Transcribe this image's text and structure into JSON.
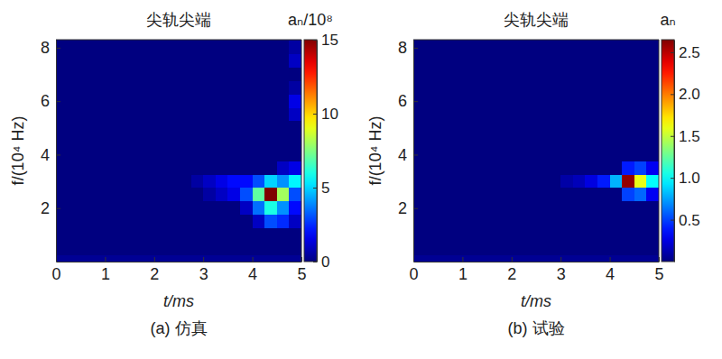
{
  "chart_data": [
    {
      "type": "heatmap",
      "title": "尖轨尖端",
      "subtitle": "(a) 仿真",
      "x_label": "t/ms",
      "y_label": "f/(10⁴ Hz)",
      "xlim": [
        0,
        5
      ],
      "xticks": [
        0,
        1,
        2,
        3,
        4,
        5
      ],
      "ylim": [
        0,
        8.3
      ],
      "yticks": [
        2,
        4,
        6,
        8
      ],
      "x": [
        0.125,
        0.375,
        0.625,
        0.875,
        1.125,
        1.375,
        1.625,
        1.875,
        2.125,
        2.375,
        2.625,
        2.875,
        3.125,
        3.375,
        3.625,
        3.875,
        4.125,
        4.375,
        4.625,
        4.875
      ],
      "y": [
        0,
        0.5,
        1,
        1.5,
        2,
        2.5,
        3,
        3.5,
        4,
        4.5,
        5,
        5.5,
        6,
        6.5,
        7,
        7.5,
        8
      ],
      "z": [
        [
          0.3,
          0.3,
          0.3,
          0.3,
          0.3,
          0.3,
          0.3,
          0.3,
          0.3,
          0.3,
          0.3,
          0.3,
          0.3,
          0.3,
          0.3,
          0.3,
          0.3,
          0.3,
          0.3,
          0.3
        ],
        [
          0,
          0,
          0,
          0,
          0,
          0,
          0,
          0,
          0,
          0,
          0,
          0,
          0,
          0,
          0,
          0,
          0,
          0,
          0,
          0
        ],
        [
          0,
          0,
          0,
          0,
          0,
          0,
          0,
          0,
          0,
          0,
          0,
          0,
          0,
          0,
          0,
          0,
          0,
          0,
          0,
          0
        ],
        [
          0,
          0,
          0,
          0,
          0,
          0,
          0,
          0,
          0,
          0,
          0,
          0,
          0,
          0,
          0,
          0,
          1,
          3,
          2.5,
          1
        ],
        [
          0,
          0,
          0,
          0,
          0,
          0,
          0,
          0,
          0,
          0,
          0,
          0,
          0,
          0,
          0,
          1,
          3.5,
          6,
          4,
          2
        ],
        [
          0,
          0,
          0,
          0,
          0,
          0,
          0,
          0,
          0,
          0,
          0,
          0,
          0.5,
          1,
          1.5,
          3,
          7,
          15,
          8,
          3
        ],
        [
          0,
          0,
          0,
          0,
          0,
          0,
          0,
          0,
          0,
          0,
          0,
          0.5,
          1,
          1.5,
          2,
          2,
          3,
          5,
          4,
          5.5
        ],
        [
          0,
          0,
          0,
          0,
          0,
          0,
          0,
          0,
          0,
          0,
          0,
          0,
          0,
          0,
          0,
          0,
          0,
          0,
          1,
          1.5
        ],
        [
          0,
          0,
          0,
          0,
          0,
          0,
          0,
          0,
          0,
          0,
          0,
          0,
          0,
          0,
          0,
          0,
          0,
          0,
          0,
          0
        ],
        [
          0,
          0,
          0,
          0,
          0,
          0,
          0,
          0,
          0,
          0,
          0,
          0,
          0,
          0,
          0,
          0,
          0,
          0,
          0,
          0
        ],
        [
          0,
          0,
          0,
          0,
          0,
          0,
          0,
          0,
          0,
          0,
          0,
          0,
          0,
          0,
          0,
          0,
          0,
          0,
          0,
          0
        ],
        [
          0,
          0,
          0,
          0,
          0,
          0,
          0,
          0,
          0,
          0,
          0,
          0,
          0,
          0,
          0,
          0,
          0,
          0,
          0,
          1
        ],
        [
          0,
          0,
          0,
          0,
          0,
          0,
          0,
          0,
          0,
          0,
          0,
          0,
          0,
          0,
          0,
          0,
          0,
          0,
          0,
          1.5
        ],
        [
          0,
          0,
          0,
          0,
          0,
          0,
          0,
          0,
          0,
          0,
          0,
          0,
          0,
          0,
          0,
          0,
          0,
          0,
          0,
          0.5
        ],
        [
          0,
          0,
          0,
          0,
          0,
          0,
          0,
          0,
          0,
          0,
          0,
          0,
          0,
          0,
          0,
          0,
          0,
          0,
          0,
          0
        ],
        [
          0,
          0,
          0,
          0,
          0,
          0,
          0,
          0,
          0,
          0,
          0,
          0,
          0,
          0,
          0,
          0,
          0,
          0,
          0,
          1
        ],
        [
          0,
          0,
          0,
          0,
          0,
          0,
          0,
          0,
          0,
          0,
          0,
          0,
          0,
          0,
          0,
          0,
          0,
          0,
          0,
          0.5
        ]
      ],
      "colorbar": {
        "label": "aₙ/10⁸",
        "lim": [
          0,
          15
        ],
        "ticks": [
          0,
          5,
          10,
          15
        ]
      }
    },
    {
      "type": "heatmap",
      "title": "尖轨尖端",
      "subtitle": "(b) 试验",
      "x_label": "t/ms",
      "y_label": "f/(10⁴ Hz)",
      "xlim": [
        0,
        5
      ],
      "xticks": [
        0,
        1,
        2,
        3,
        4,
        5
      ],
      "ylim": [
        0,
        8.3
      ],
      "yticks": [
        2,
        4,
        6,
        8
      ],
      "x": [
        0.125,
        0.375,
        0.625,
        0.875,
        1.125,
        1.375,
        1.625,
        1.875,
        2.125,
        2.375,
        2.625,
        2.875,
        3.125,
        3.375,
        3.625,
        3.875,
        4.125,
        4.375,
        4.625,
        4.875
      ],
      "y": [
        0,
        0.5,
        1,
        1.5,
        2,
        2.5,
        3,
        3.5,
        4,
        4.5,
        5,
        5.5,
        6,
        6.5,
        7,
        7.5,
        8
      ],
      "z": [
        [
          0.05,
          0.05,
          0.05,
          0.05,
          0.05,
          0.05,
          0.05,
          0.05,
          0.05,
          0.05,
          0.05,
          0.05,
          0.05,
          0.05,
          0.05,
          0.05,
          0.05,
          0.05,
          0.05,
          0.05
        ],
        [
          0,
          0,
          0,
          0,
          0,
          0,
          0,
          0,
          0,
          0,
          0,
          0,
          0,
          0,
          0,
          0,
          0,
          0,
          0,
          0
        ],
        [
          0,
          0,
          0,
          0,
          0,
          0,
          0,
          0,
          0,
          0,
          0,
          0,
          0,
          0,
          0,
          0,
          0,
          0,
          0,
          0
        ],
        [
          0,
          0,
          0,
          0,
          0,
          0,
          0,
          0,
          0,
          0,
          0,
          0,
          0,
          0,
          0,
          0,
          0,
          0,
          0,
          0
        ],
        [
          0,
          0,
          0,
          0,
          0,
          0,
          0,
          0,
          0,
          0,
          0,
          0,
          0,
          0,
          0,
          0,
          0,
          0,
          0,
          0
        ],
        [
          0,
          0,
          0,
          0,
          0,
          0,
          0,
          0,
          0,
          0,
          0,
          0,
          0,
          0,
          0,
          0,
          0,
          0.5,
          0.6,
          0.3
        ],
        [
          0,
          0,
          0,
          0,
          0,
          0,
          0,
          0,
          0,
          0,
          0,
          0,
          0.1,
          0.15,
          0.25,
          0.4,
          0.8,
          2.6,
          1.6,
          1
        ],
        [
          0,
          0,
          0,
          0,
          0,
          0,
          0,
          0,
          0,
          0,
          0,
          0,
          0,
          0,
          0,
          0,
          0,
          0.4,
          0.5,
          0.3
        ],
        [
          0,
          0,
          0,
          0,
          0,
          0,
          0,
          0,
          0,
          0,
          0,
          0,
          0,
          0,
          0,
          0,
          0,
          0,
          0,
          0
        ],
        [
          0,
          0,
          0,
          0,
          0,
          0,
          0,
          0,
          0,
          0,
          0,
          0,
          0,
          0,
          0,
          0,
          0,
          0,
          0,
          0
        ],
        [
          0,
          0,
          0,
          0,
          0,
          0,
          0,
          0,
          0,
          0,
          0,
          0,
          0,
          0,
          0,
          0,
          0,
          0,
          0,
          0
        ],
        [
          0,
          0,
          0,
          0,
          0,
          0,
          0,
          0,
          0,
          0,
          0,
          0,
          0,
          0,
          0,
          0,
          0,
          0,
          0,
          0
        ],
        [
          0,
          0,
          0,
          0,
          0,
          0,
          0,
          0,
          0,
          0,
          0,
          0,
          0,
          0,
          0,
          0,
          0,
          0,
          0,
          0
        ],
        [
          0,
          0,
          0,
          0,
          0,
          0,
          0,
          0,
          0,
          0,
          0,
          0,
          0,
          0,
          0,
          0,
          0,
          0,
          0,
          0
        ],
        [
          0,
          0,
          0,
          0,
          0,
          0,
          0,
          0,
          0,
          0,
          0,
          0,
          0,
          0,
          0,
          0,
          0,
          0,
          0,
          0
        ],
        [
          0,
          0,
          0,
          0,
          0,
          0,
          0,
          0,
          0,
          0,
          0,
          0,
          0,
          0,
          0,
          0,
          0,
          0,
          0,
          0
        ],
        [
          0,
          0,
          0,
          0,
          0,
          0,
          0,
          0,
          0,
          0,
          0,
          0,
          0,
          0,
          0,
          0,
          0,
          0,
          0,
          0
        ]
      ],
      "colorbar": {
        "label": "aₙ",
        "lim": [
          0,
          2.65
        ],
        "ticks": [
          0.5,
          {
            "value": 1,
            "label": "1.0"
          },
          1.5,
          {
            "value": 2,
            "label": "2.0"
          },
          2.5
        ]
      }
    }
  ]
}
